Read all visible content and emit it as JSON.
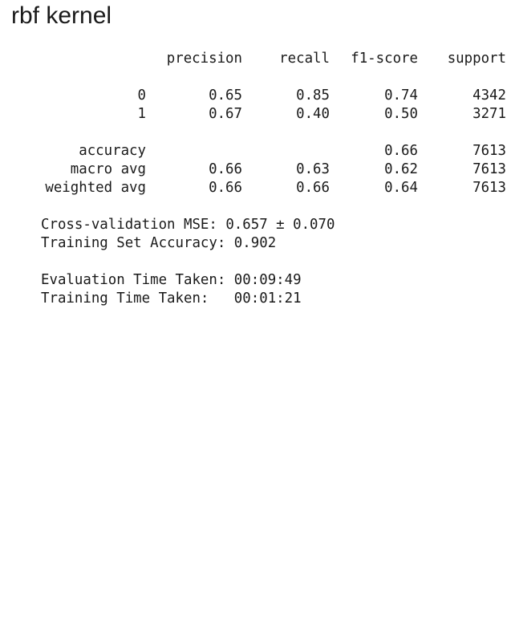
{
  "title": "rbf kernel",
  "report": {
    "headers": {
      "precision": "precision",
      "recall": "recall",
      "f1": "f1-score",
      "support": "support"
    },
    "rows": [
      {
        "label": "0",
        "precision": "0.65",
        "recall": "0.85",
        "f1": "0.74",
        "support": "4342"
      },
      {
        "label": "1",
        "precision": "0.67",
        "recall": "0.40",
        "f1": "0.50",
        "support": "3271"
      },
      {
        "label": "accuracy",
        "precision": "",
        "recall": "",
        "f1": "0.66",
        "support": "7613"
      },
      {
        "label": "macro avg",
        "precision": "0.66",
        "recall": "0.63",
        "f1": "0.62",
        "support": "7613"
      },
      {
        "label": "weighted avg",
        "precision": "0.66",
        "recall": "0.66",
        "f1": "0.64",
        "support": "7613"
      }
    ]
  },
  "metrics": {
    "cv_mse": "Cross-validation MSE: 0.657 ± 0.070",
    "train_acc": "Training Set Accuracy: 0.902",
    "eval_time": "Evaluation Time Taken: 00:09:49",
    "train_time": "Training Time Taken:   00:01:21"
  }
}
